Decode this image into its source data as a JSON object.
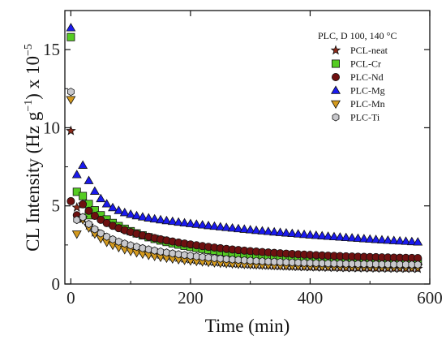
{
  "chart_data": {
    "type": "scatter",
    "xlabel": "Time (min)",
    "ylabel": "CL Intensity (Hz g",
    "ylabel_sup": "−1",
    "ylabel_tail": ") x 10",
    "ylabel_exp": "−5",
    "xlim": [
      -10,
      600
    ],
    "ylim": [
      0,
      17.5
    ],
    "xticks": [
      0,
      200,
      400,
      600
    ],
    "xtick_labels": [
      "0",
      "200",
      "400",
      "600"
    ],
    "yticks": [
      0,
      5,
      10,
      15
    ],
    "ytick_labels": [
      "0",
      "5",
      "10",
      "15"
    ],
    "legend_title": "PLC, D 100, 140 °C",
    "legend_position": "top-right",
    "grid": false,
    "series": [
      {
        "name": "PCL-neat",
        "marker": "star",
        "color": "#8b2a1a",
        "p0": 9.8,
        "p1": 4.9,
        "inf": 0.95,
        "tau": 130,
        "amp2": 2.5,
        "a": 0.018,
        "extra": [
          [
            20,
            5.1
          ],
          [
            40,
            3.3
          ]
        ]
      },
      {
        "name": "PCL-Cr",
        "marker": "square",
        "color": "#55cc22",
        "p0": 15.8,
        "p1": 5.9,
        "inf": 1.35,
        "tau": 150,
        "amp2": 3.4,
        "a": 0.022,
        "extra": [
          [
            30,
            4.4
          ]
        ]
      },
      {
        "name": "PLC-Nd",
        "marker": "circle",
        "color": "#6e1010",
        "p0": 5.3,
        "p1": 4.4,
        "inf": 1.55,
        "tau": 175,
        "amp2": 2.75,
        "a": 0.02,
        "extra": []
      },
      {
        "name": "PLC-Mg",
        "marker": "triangle-up",
        "color": "#1a1aee",
        "p0": 16.4,
        "p1": 7.0,
        "inf": 1.6,
        "tau": 520,
        "amp2": 3.2,
        "a": 0.07,
        "extra": []
      },
      {
        "name": "PLC-Mn",
        "marker": "triangle-down",
        "color": "#d49a1e",
        "p0": 11.8,
        "p1": 3.2,
        "inf": 1.05,
        "tau": 120,
        "amp2": 1.95,
        "a": 0.028,
        "extra": []
      },
      {
        "name": "PLC-Ti",
        "marker": "hexagon",
        "color": "#c8c8cc",
        "p0": 12.3,
        "p1": 4.1,
        "inf": 1.2,
        "tau": 140,
        "amp2": 2.2,
        "a": 0.022,
        "extra": []
      }
    ]
  }
}
